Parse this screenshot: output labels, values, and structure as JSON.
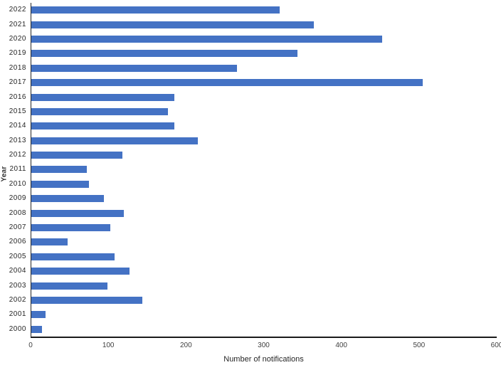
{
  "chart_data": {
    "type": "bar",
    "orientation": "horizontal",
    "title": "",
    "xlabel": "Number of notifications",
    "ylabel": "Year",
    "xlim": [
      0,
      600
    ],
    "x_ticks": [
      0,
      100,
      200,
      300,
      400,
      500,
      600
    ],
    "grid": false,
    "legend_position": "none",
    "bar_color": "#4472C4",
    "axis_color": "#262626",
    "categories": [
      "2022",
      "2021",
      "2020",
      "2019",
      "2018",
      "2017",
      "2016",
      "2015",
      "2014",
      "2013",
      "2012",
      "2011",
      "2010",
      "2009",
      "2008",
      "2007",
      "2006",
      "2005",
      "2004",
      "2003",
      "2002",
      "2001",
      "2000"
    ],
    "values": [
      320,
      364,
      452,
      343,
      265,
      505,
      184,
      176,
      184,
      215,
      117,
      72,
      74,
      94,
      119,
      102,
      47,
      107,
      127,
      98,
      143,
      18,
      14
    ]
  }
}
